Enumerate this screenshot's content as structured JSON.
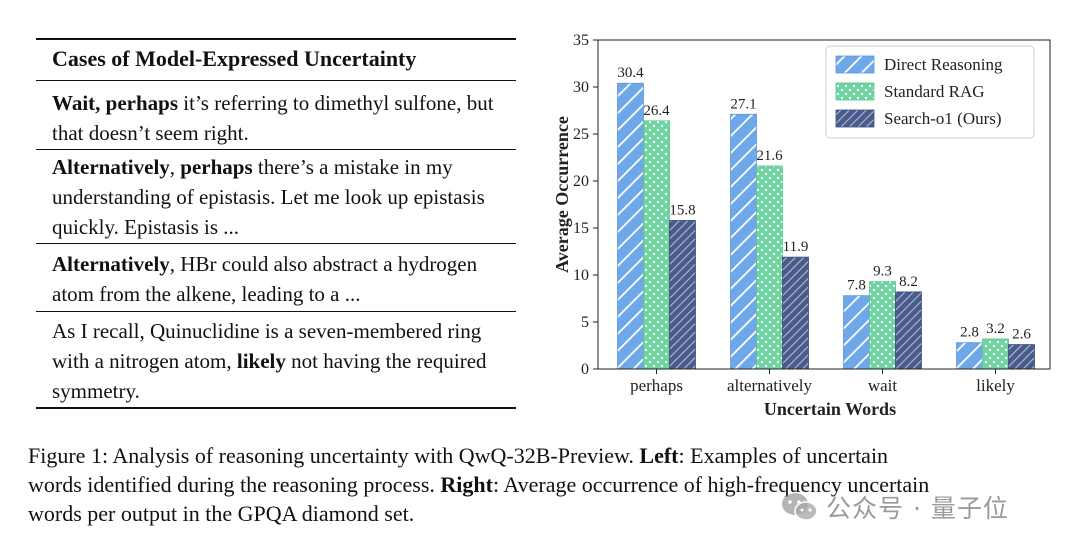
{
  "table": {
    "header": "Cases of Model-Expressed Uncertainty",
    "rows": [
      {
        "segments": [
          {
            "text": "Wait, perhaps",
            "bold": true
          },
          {
            "text": " it’s referring to dimethyl sulfone, but that doesn’t seem right.",
            "bold": false
          }
        ]
      },
      {
        "segments": [
          {
            "text": "Alternatively",
            "bold": true
          },
          {
            "text": ", ",
            "bold": false
          },
          {
            "text": "perhaps",
            "bold": true
          },
          {
            "text": " there’s a mistake in my understanding of epistasis. Let me look up epistasis quickly. Epistasis is ...",
            "bold": false
          }
        ]
      },
      {
        "segments": [
          {
            "text": "Alternatively",
            "bold": true
          },
          {
            "text": ", HBr could also abstract a hydrogen atom from the alkene, leading to a ...",
            "bold": false
          }
        ]
      },
      {
        "segments": [
          {
            "text": "As I recall, Quinuclidine is a seven-membered ring with a nitrogen atom, ",
            "bold": false
          },
          {
            "text": "likely",
            "bold": true
          },
          {
            "text": " not having the required symmetry.",
            "bold": false
          }
        ]
      }
    ]
  },
  "chart_data": {
    "type": "bar",
    "categories": [
      "perhaps",
      "alternatively",
      "wait",
      "likely"
    ],
    "series": [
      {
        "name": "Direct Reasoning",
        "values": [
          30.4,
          27.1,
          7.8,
          2.8
        ],
        "color": "#6fa8e8",
        "pattern": "diagonal-hatch"
      },
      {
        "name": "Standard RAG",
        "values": [
          26.4,
          21.6,
          9.3,
          3.2
        ],
        "color": "#6ed4a0",
        "pattern": "dots"
      },
      {
        "name": "Search-o1 (Ours)",
        "values": [
          15.8,
          11.9,
          8.2,
          2.6
        ],
        "color": "#4a5c8c",
        "pattern": "dense-hatch"
      }
    ],
    "xlabel": "Uncertain Words",
    "ylabel": "Average Occurrence",
    "ylim": [
      0,
      35
    ],
    "yticks": [
      0,
      5,
      10,
      15,
      20,
      25,
      30,
      35
    ],
    "legend_position": "top-right",
    "grid": false
  },
  "caption": {
    "lines": [
      [
        {
          "text": "Figure 1: Analysis of reasoning uncertainty with QwQ-32B-Preview. ",
          "bold": false
        },
        {
          "text": "Left",
          "bold": true
        },
        {
          "text": ": Examples of uncertain",
          "bold": false
        }
      ],
      [
        {
          "text": "words identified during the reasoning process. ",
          "bold": false
        },
        {
          "text": "Right",
          "bold": true
        },
        {
          "text": ": Average occurrence of high-frequency uncertain",
          "bold": false
        }
      ],
      [
        {
          "text": "words per output in the GPQA diamond set.",
          "bold": false
        }
      ]
    ]
  },
  "watermark": {
    "text": "公众号 · 量子位",
    "icon": "wechat-icon"
  }
}
